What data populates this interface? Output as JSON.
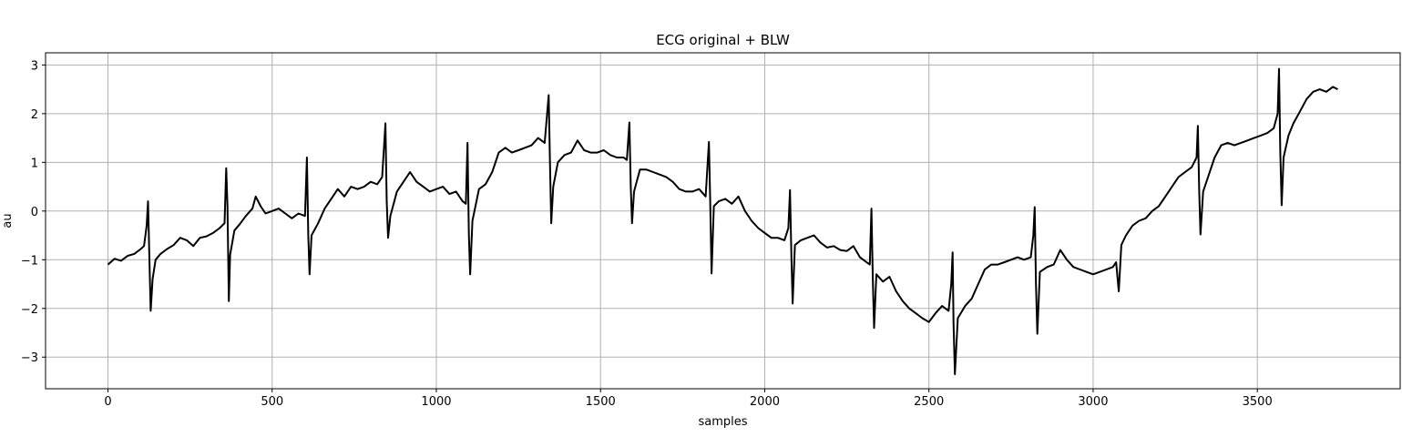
{
  "chart_data": {
    "type": "line",
    "title": "ECG original + BLW",
    "xlabel": "samples",
    "ylabel": "au",
    "xlim": [
      -190,
      3935
    ],
    "ylim": [
      -3.65,
      3.25
    ],
    "xticks": [
      0,
      500,
      1000,
      1500,
      2000,
      2500,
      3000,
      3500
    ],
    "yticks": [
      -3,
      -2,
      -1,
      0,
      1,
      2,
      3
    ],
    "grid": true,
    "line_color": "#000000",
    "series": [
      {
        "points": [
          [
            0,
            -1.1
          ],
          [
            20,
            -0.98
          ],
          [
            40,
            -1.02
          ],
          [
            60,
            -0.92
          ],
          [
            80,
            -0.88
          ],
          [
            100,
            -0.78
          ],
          [
            110,
            -0.72
          ],
          [
            118,
            -0.3
          ],
          [
            122,
            0.2
          ],
          [
            126,
            -0.9
          ],
          [
            130,
            -2.05
          ],
          [
            136,
            -1.4
          ],
          [
            145,
            -1.0
          ],
          [
            160,
            -0.88
          ],
          [
            180,
            -0.78
          ],
          [
            200,
            -0.7
          ],
          [
            220,
            -0.55
          ],
          [
            240,
            -0.6
          ],
          [
            260,
            -0.72
          ],
          [
            280,
            -0.55
          ],
          [
            300,
            -0.52
          ],
          [
            320,
            -0.45
          ],
          [
            340,
            -0.35
          ],
          [
            355,
            -0.25
          ],
          [
            360,
            0.88
          ],
          [
            364,
            0.1
          ],
          [
            368,
            -1.85
          ],
          [
            372,
            -0.9
          ],
          [
            385,
            -0.4
          ],
          [
            400,
            -0.28
          ],
          [
            420,
            -0.1
          ],
          [
            440,
            0.05
          ],
          [
            450,
            0.3
          ],
          [
            465,
            0.1
          ],
          [
            480,
            -0.05
          ],
          [
            500,
            0.0
          ],
          [
            520,
            0.05
          ],
          [
            540,
            -0.05
          ],
          [
            560,
            -0.15
          ],
          [
            580,
            -0.05
          ],
          [
            600,
            -0.1
          ],
          [
            606,
            1.1
          ],
          [
            610,
            -0.5
          ],
          [
            614,
            -1.3
          ],
          [
            620,
            -0.5
          ],
          [
            640,
            -0.25
          ],
          [
            660,
            0.05
          ],
          [
            680,
            0.25
          ],
          [
            700,
            0.45
          ],
          [
            720,
            0.3
          ],
          [
            740,
            0.5
          ],
          [
            760,
            0.45
          ],
          [
            780,
            0.5
          ],
          [
            800,
            0.6
          ],
          [
            820,
            0.55
          ],
          [
            835,
            0.7
          ],
          [
            845,
            1.8
          ],
          [
            849,
            0.2
          ],
          [
            853,
            -0.55
          ],
          [
            860,
            -0.1
          ],
          [
            880,
            0.4
          ],
          [
            900,
            0.6
          ],
          [
            920,
            0.8
          ],
          [
            940,
            0.6
          ],
          [
            960,
            0.5
          ],
          [
            980,
            0.4
          ],
          [
            1000,
            0.45
          ],
          [
            1020,
            0.5
          ],
          [
            1040,
            0.35
          ],
          [
            1060,
            0.4
          ],
          [
            1080,
            0.2
          ],
          [
            1090,
            0.15
          ],
          [
            1095,
            1.4
          ],
          [
            1099,
            -0.5
          ],
          [
            1103,
            -1.3
          ],
          [
            1110,
            -0.2
          ],
          [
            1130,
            0.45
          ],
          [
            1150,
            0.55
          ],
          [
            1170,
            0.8
          ],
          [
            1190,
            1.2
          ],
          [
            1210,
            1.3
          ],
          [
            1230,
            1.2
          ],
          [
            1250,
            1.25
          ],
          [
            1270,
            1.3
          ],
          [
            1290,
            1.35
          ],
          [
            1310,
            1.5
          ],
          [
            1330,
            1.4
          ],
          [
            1342,
            2.38
          ],
          [
            1346,
            1.0
          ],
          [
            1350,
            -0.25
          ],
          [
            1356,
            0.5
          ],
          [
            1370,
            1.0
          ],
          [
            1390,
            1.15
          ],
          [
            1410,
            1.2
          ],
          [
            1430,
            1.45
          ],
          [
            1450,
            1.25
          ],
          [
            1470,
            1.2
          ],
          [
            1490,
            1.2
          ],
          [
            1510,
            1.25
          ],
          [
            1530,
            1.15
          ],
          [
            1550,
            1.1
          ],
          [
            1570,
            1.1
          ],
          [
            1580,
            1.05
          ],
          [
            1588,
            1.82
          ],
          [
            1592,
            0.5
          ],
          [
            1596,
            -0.25
          ],
          [
            1602,
            0.4
          ],
          [
            1620,
            0.85
          ],
          [
            1640,
            0.85
          ],
          [
            1660,
            0.8
          ],
          [
            1680,
            0.75
          ],
          [
            1700,
            0.7
          ],
          [
            1720,
            0.6
          ],
          [
            1740,
            0.45
          ],
          [
            1760,
            0.4
          ],
          [
            1780,
            0.4
          ],
          [
            1800,
            0.45
          ],
          [
            1820,
            0.3
          ],
          [
            1830,
            1.42
          ],
          [
            1834,
            0.2
          ],
          [
            1838,
            -1.28
          ],
          [
            1845,
            0.1
          ],
          [
            1860,
            0.2
          ],
          [
            1880,
            0.25
          ],
          [
            1900,
            0.15
          ],
          [
            1920,
            0.3
          ],
          [
            1940,
            0.0
          ],
          [
            1960,
            -0.2
          ],
          [
            1980,
            -0.35
          ],
          [
            2000,
            -0.45
          ],
          [
            2020,
            -0.55
          ],
          [
            2040,
            -0.55
          ],
          [
            2060,
            -0.6
          ],
          [
            2072,
            -0.35
          ],
          [
            2077,
            0.43
          ],
          [
            2081,
            -0.9
          ],
          [
            2085,
            -1.9
          ],
          [
            2092,
            -0.7
          ],
          [
            2110,
            -0.6
          ],
          [
            2130,
            -0.55
          ],
          [
            2150,
            -0.5
          ],
          [
            2170,
            -0.65
          ],
          [
            2190,
            -0.75
          ],
          [
            2210,
            -0.72
          ],
          [
            2230,
            -0.8
          ],
          [
            2250,
            -0.82
          ],
          [
            2270,
            -0.72
          ],
          [
            2290,
            -0.95
          ],
          [
            2310,
            -1.05
          ],
          [
            2320,
            -1.1
          ],
          [
            2325,
            0.05
          ],
          [
            2329,
            -1.4
          ],
          [
            2333,
            -2.4
          ],
          [
            2340,
            -1.3
          ],
          [
            2360,
            -1.45
          ],
          [
            2380,
            -1.35
          ],
          [
            2400,
            -1.65
          ],
          [
            2420,
            -1.85
          ],
          [
            2440,
            -2.0
          ],
          [
            2460,
            -2.1
          ],
          [
            2480,
            -2.2
          ],
          [
            2500,
            -2.28
          ],
          [
            2520,
            -2.1
          ],
          [
            2540,
            -1.95
          ],
          [
            2560,
            -2.05
          ],
          [
            2568,
            -1.5
          ],
          [
            2572,
            -0.85
          ],
          [
            2575,
            -2.3
          ],
          [
            2579,
            -3.35
          ],
          [
            2588,
            -2.2
          ],
          [
            2610,
            -1.95
          ],
          [
            2630,
            -1.8
          ],
          [
            2650,
            -1.5
          ],
          [
            2670,
            -1.2
          ],
          [
            2690,
            -1.1
          ],
          [
            2710,
            -1.1
          ],
          [
            2730,
            -1.05
          ],
          [
            2750,
            -1.0
          ],
          [
            2770,
            -0.95
          ],
          [
            2790,
            -1.0
          ],
          [
            2810,
            -0.95
          ],
          [
            2818,
            -0.5
          ],
          [
            2822,
            0.08
          ],
          [
            2826,
            -1.5
          ],
          [
            2830,
            -2.52
          ],
          [
            2838,
            -1.25
          ],
          [
            2860,
            -1.15
          ],
          [
            2880,
            -1.1
          ],
          [
            2900,
            -0.8
          ],
          [
            2920,
            -1.0
          ],
          [
            2940,
            -1.15
          ],
          [
            2960,
            -1.2
          ],
          [
            2980,
            -1.25
          ],
          [
            3000,
            -1.3
          ],
          [
            3020,
            -1.25
          ],
          [
            3040,
            -1.2
          ],
          [
            3060,
            -1.15
          ],
          [
            3070,
            -1.05
          ],
          [
            3078,
            -1.65
          ],
          [
            3086,
            -0.7
          ],
          [
            3100,
            -0.5
          ],
          [
            3120,
            -0.3
          ],
          [
            3140,
            -0.2
          ],
          [
            3160,
            -0.15
          ],
          [
            3180,
            0.0
          ],
          [
            3200,
            0.1
          ],
          [
            3220,
            0.3
          ],
          [
            3240,
            0.5
          ],
          [
            3260,
            0.7
          ],
          [
            3280,
            0.8
          ],
          [
            3300,
            0.9
          ],
          [
            3315,
            1.1
          ],
          [
            3319,
            1.75
          ],
          [
            3323,
            0.4
          ],
          [
            3327,
            -0.48
          ],
          [
            3335,
            0.4
          ],
          [
            3350,
            0.7
          ],
          [
            3370,
            1.1
          ],
          [
            3390,
            1.35
          ],
          [
            3410,
            1.4
          ],
          [
            3430,
            1.35
          ],
          [
            3450,
            1.4
          ],
          [
            3470,
            1.45
          ],
          [
            3490,
            1.5
          ],
          [
            3510,
            1.55
          ],
          [
            3530,
            1.6
          ],
          [
            3550,
            1.7
          ],
          [
            3562,
            2.0
          ],
          [
            3566,
            2.92
          ],
          [
            3570,
            1.2
          ],
          [
            3574,
            0.12
          ],
          [
            3580,
            1.1
          ],
          [
            3595,
            1.55
          ],
          [
            3610,
            1.8
          ],
          [
            3630,
            2.05
          ],
          [
            3650,
            2.3
          ],
          [
            3670,
            2.45
          ],
          [
            3690,
            2.5
          ],
          [
            3710,
            2.45
          ],
          [
            3730,
            2.55
          ],
          [
            3745,
            2.5
          ]
        ]
      }
    ]
  }
}
